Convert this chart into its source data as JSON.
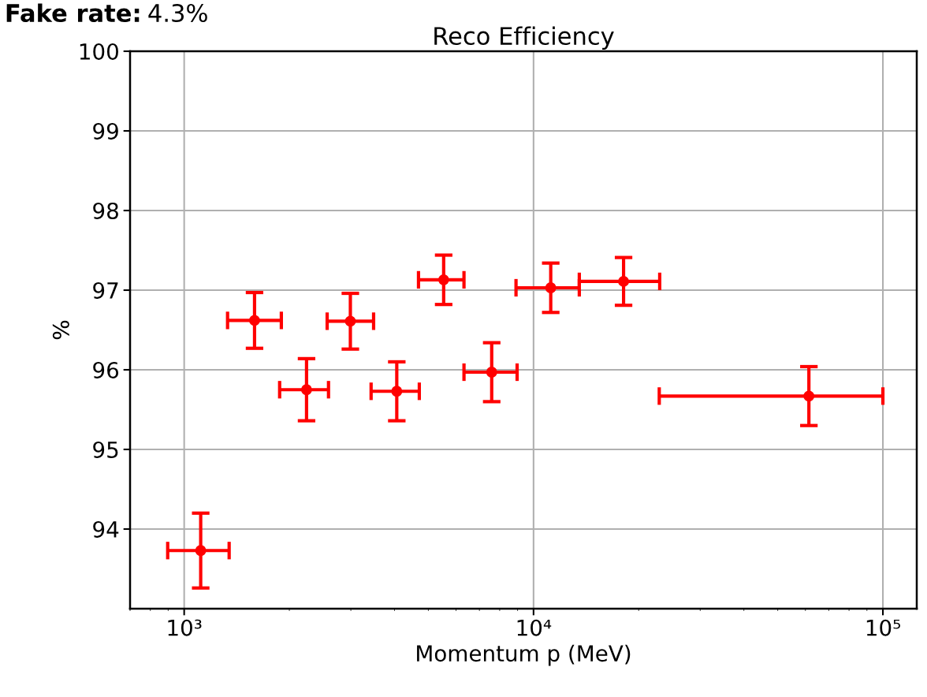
{
  "chart_data": {
    "type": "scatter",
    "title": "Reco Efficiency",
    "xlabel": "Momentum p (MeV)",
    "ylabel": "%",
    "annotations": [
      "Fake rate:",
      "4.3%"
    ],
    "x": [
      1115,
      1590,
      2240,
      2990,
      4060,
      5530,
      7590,
      11200,
      18100,
      61400
    ],
    "series": [
      {
        "color": "#ff0000",
        "values": [
          93.73,
          96.62,
          95.75,
          96.61,
          95.73,
          97.13,
          95.97,
          97.03,
          97.11,
          95.67
        ],
        "errors": [
          0.47,
          0.35,
          0.39,
          0.35,
          0.37,
          0.31,
          0.37,
          0.31,
          0.3,
          0.37
        ],
        "xerrors": [
          [
            897,
            1345
          ],
          [
            1331,
            1897
          ],
          [
            1876,
            2589
          ],
          [
            2566,
            3485
          ],
          [
            3428,
            4710
          ],
          [
            4685,
            6323
          ],
          [
            6323,
            8974
          ],
          [
            8909,
            13520
          ],
          [
            13520,
            22970
          ],
          [
            22900,
            100000
          ]
        ]
      }
    ],
    "log": "x",
    "xlim": [
      700,
      125000
    ],
    "ylim": [
      93,
      100
    ],
    "xticks": [
      {
        "value": 1000,
        "label": "10³"
      },
      {
        "value": 10000,
        "label": "10⁴"
      },
      {
        "value": 100000,
        "label": "10⁵"
      }
    ],
    "yticks": [
      94,
      95,
      96,
      97,
      98,
      99,
      100
    ],
    "grid": true,
    "marker": "circle",
    "line_style": "none"
  }
}
